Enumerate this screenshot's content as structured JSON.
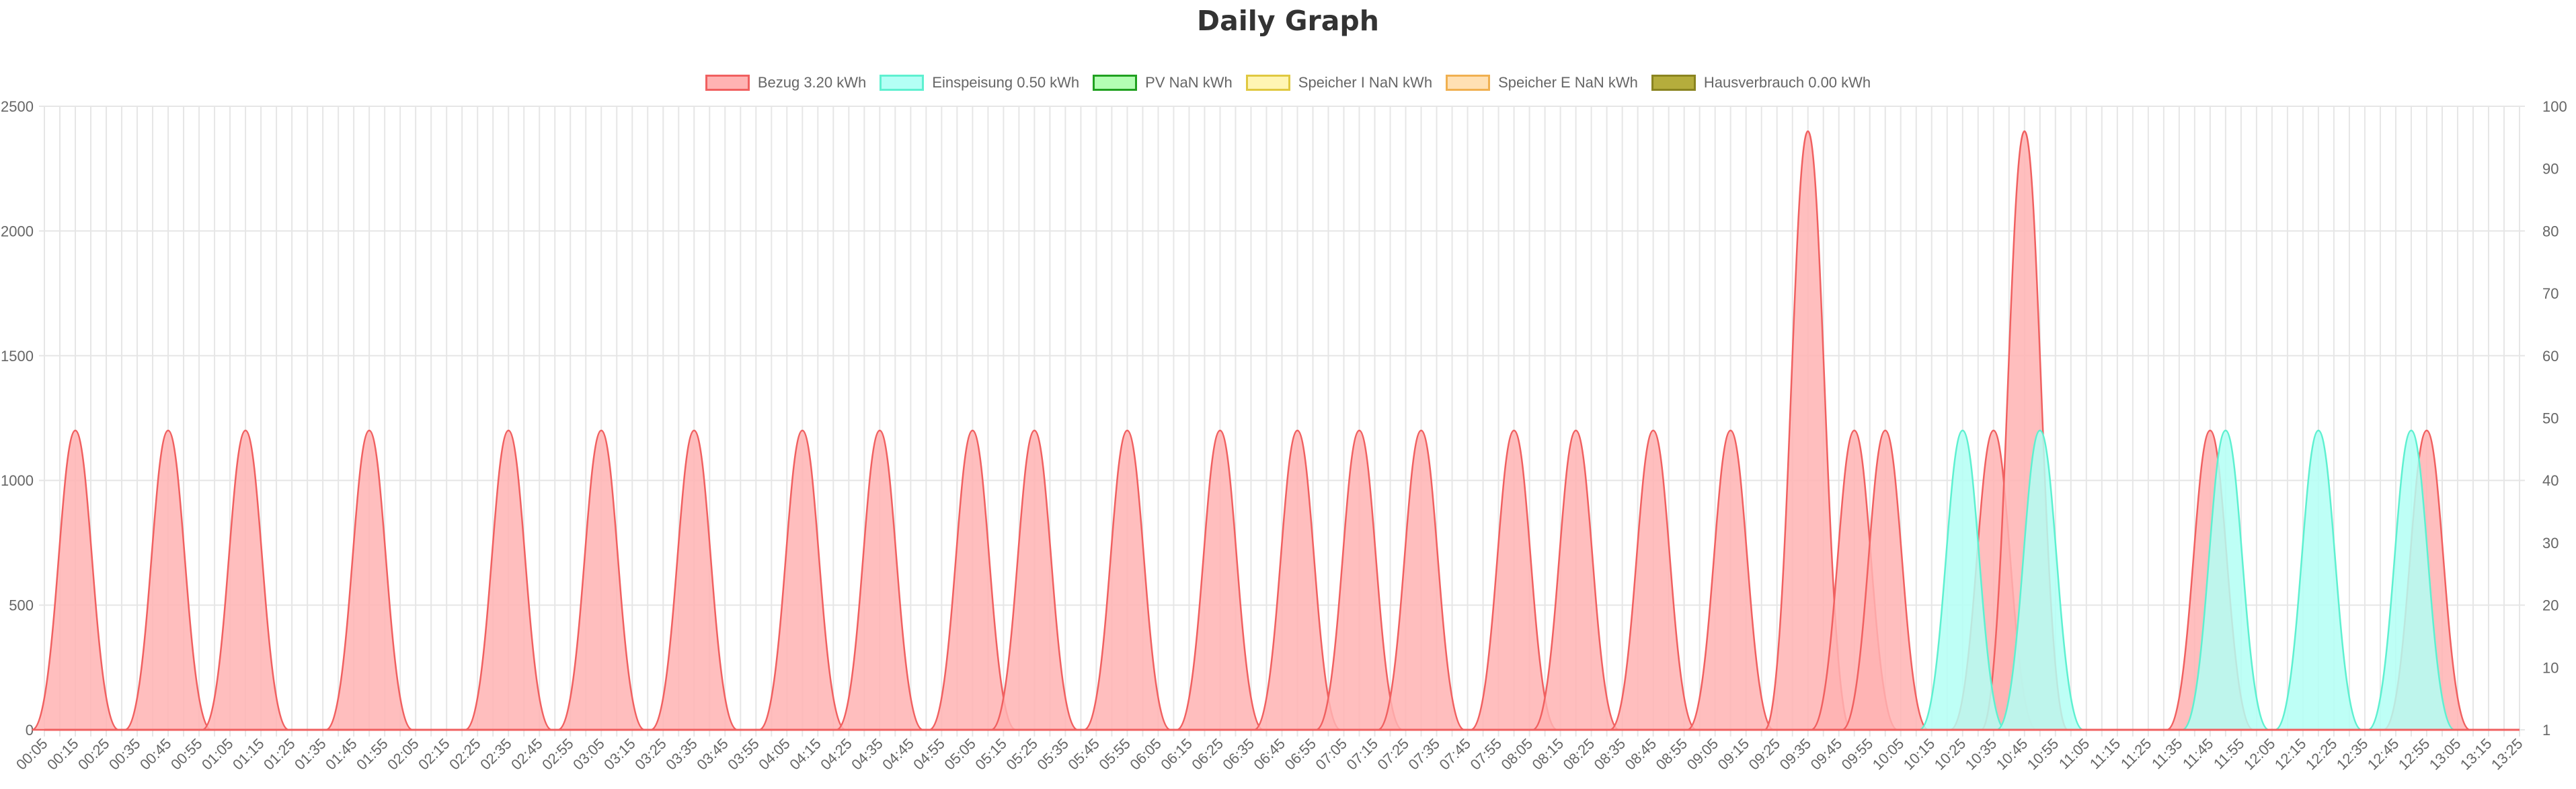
{
  "title": "Daily Graph",
  "legend": [
    {
      "label": "Bezug 3.20 kWh",
      "fill": "#ffb3b3",
      "stroke": "#f06060"
    },
    {
      "label": "Einspeisung 0.50 kWh",
      "fill": "#b3fff5",
      "stroke": "#5ef0d0"
    },
    {
      "label": "PV NaN kWh",
      "fill": "#b3ffb3",
      "stroke": "#20a020"
    },
    {
      "label": "Speicher I NaN kWh",
      "fill": "#fff5b3",
      "stroke": "#e0c840"
    },
    {
      "label": "Speicher E NaN kWh",
      "fill": "#ffe0b3",
      "stroke": "#f0b050"
    },
    {
      "label": "Hausverbrauch 0.00 kWh",
      "fill": "#b5ad3c",
      "stroke": "#8a8420"
    }
  ],
  "chart_data": {
    "type": "area",
    "title": "Daily Graph",
    "x_start": "00:05",
    "x_end": "13:25",
    "x_step_minutes": 5,
    "x_tick_labels": [
      "00:05",
      "00:15",
      "00:25",
      "00:35",
      "00:45",
      "00:55",
      "01:05",
      "01:15",
      "01:25",
      "01:35",
      "01:45",
      "01:55",
      "02:05",
      "02:15",
      "02:25",
      "02:35",
      "02:45",
      "02:55",
      "03:05",
      "03:15",
      "03:25",
      "03:35",
      "03:45",
      "03:55",
      "04:05",
      "04:15",
      "04:25",
      "04:35",
      "04:45",
      "04:55",
      "05:05",
      "05:15",
      "05:25",
      "05:35",
      "05:45",
      "05:55",
      "06:05",
      "06:15",
      "06:25",
      "06:35",
      "06:45",
      "06:55",
      "07:05",
      "07:15",
      "07:25",
      "07:35",
      "07:45",
      "07:55",
      "08:05",
      "08:15",
      "08:25",
      "08:35",
      "08:45",
      "08:55",
      "09:05",
      "09:15",
      "09:25",
      "09:35",
      "09:45",
      "09:55",
      "10:05",
      "10:15",
      "10:25",
      "10:35",
      "10:45",
      "10:55",
      "11:05",
      "11:15",
      "11:25",
      "11:35",
      "11:45",
      "11:55",
      "12:05",
      "12:15",
      "12:25",
      "12:35",
      "12:45",
      "12:55",
      "13:05",
      "13:15",
      "13:25"
    ],
    "y_left": {
      "min": 0,
      "max": 2500,
      "ticks": [
        0,
        500,
        1000,
        1500,
        2000,
        2500
      ]
    },
    "y_right": {
      "ticks": [
        "1",
        "10",
        "20",
        "30",
        "40",
        "50",
        "60",
        "70",
        "80",
        "90",
        "100"
      ]
    },
    "grid": true,
    "legend_position": "top",
    "series": [
      {
        "name": "Bezug 3.20 kWh",
        "points": [
          {
            "x": "00:15",
            "y": 1200
          },
          {
            "x": "00:45",
            "y": 1200
          },
          {
            "x": "01:10",
            "y": 1200
          },
          {
            "x": "01:50",
            "y": 1200
          },
          {
            "x": "02:35",
            "y": 1200
          },
          {
            "x": "03:05",
            "y": 1200
          },
          {
            "x": "03:35",
            "y": 1200
          },
          {
            "x": "04:10",
            "y": 1200
          },
          {
            "x": "04:35",
            "y": 1200
          },
          {
            "x": "05:05",
            "y": 1200
          },
          {
            "x": "05:25",
            "y": 1200
          },
          {
            "x": "05:55",
            "y": 1200
          },
          {
            "x": "06:25",
            "y": 1200
          },
          {
            "x": "06:50",
            "y": 1200
          },
          {
            "x": "07:10",
            "y": 1200
          },
          {
            "x": "07:30",
            "y": 1200
          },
          {
            "x": "08:00",
            "y": 1200
          },
          {
            "x": "08:20",
            "y": 1200
          },
          {
            "x": "08:45",
            "y": 1200
          },
          {
            "x": "09:10",
            "y": 1200
          },
          {
            "x": "09:35",
            "y": 2400
          },
          {
            "x": "09:50",
            "y": 1200
          },
          {
            "x": "10:00",
            "y": 1200
          },
          {
            "x": "10:35",
            "y": 1200
          },
          {
            "x": "10:45",
            "y": 2400
          },
          {
            "x": "11:45",
            "y": 1200
          },
          {
            "x": "12:55",
            "y": 1200
          }
        ]
      },
      {
        "name": "Einspeisung 0.50 kWh",
        "points": [
          {
            "x": "10:25",
            "y": 1200
          },
          {
            "x": "10:50",
            "y": 1200
          },
          {
            "x": "11:50",
            "y": 1200
          },
          {
            "x": "12:20",
            "y": 1200
          },
          {
            "x": "12:50",
            "y": 1200
          }
        ]
      },
      {
        "name": "PV NaN kWh",
        "points": []
      },
      {
        "name": "Speicher I NaN kWh",
        "points": []
      },
      {
        "name": "Speicher E NaN kWh",
        "points": []
      },
      {
        "name": "Hausverbrauch 0.00 kWh",
        "points": []
      }
    ]
  }
}
